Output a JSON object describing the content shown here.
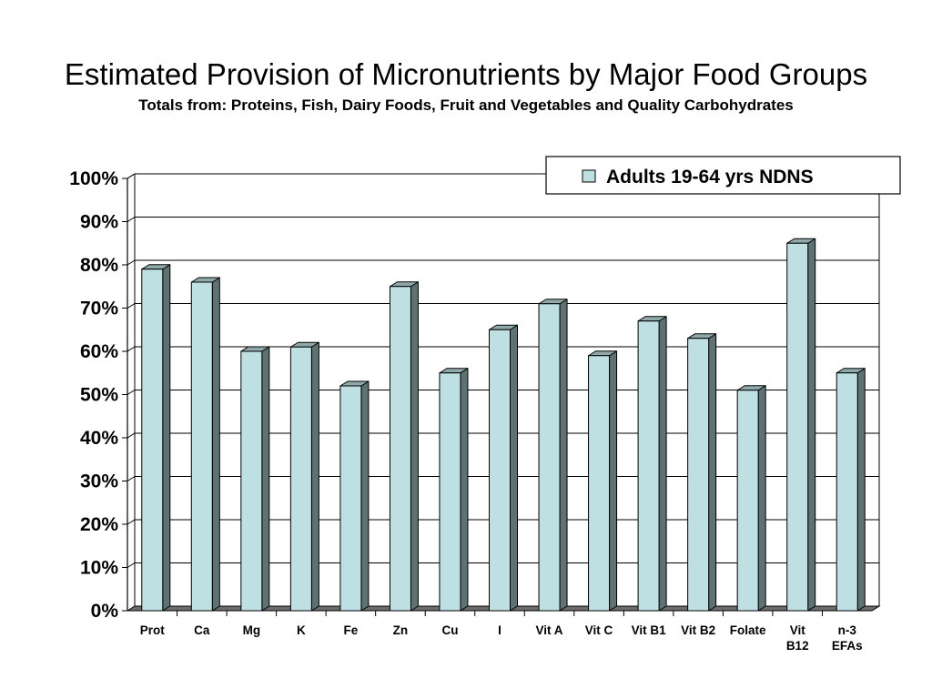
{
  "page": {
    "title": "Estimated Provision of Micronutrients by Major Food Groups",
    "subtitle": "Totals from: Proteins, Fish, Dairy Foods, Fruit and Vegetables and Quality Carbohydrates"
  },
  "chart_data": {
    "type": "bar",
    "style": "3d-column",
    "title": "",
    "xlabel": "",
    "ylabel": "",
    "ylim": [
      0,
      100
    ],
    "yticks": [
      0,
      10,
      20,
      30,
      40,
      50,
      60,
      70,
      80,
      90,
      100
    ],
    "ytick_labels": [
      "0%",
      "10%",
      "20%",
      "30%",
      "40%",
      "50%",
      "60%",
      "70%",
      "80%",
      "90%",
      "100%"
    ],
    "grid": true,
    "legend_position": "top-right",
    "categories": [
      [
        "Prot"
      ],
      [
        "Ca"
      ],
      [
        "Mg"
      ],
      [
        "K"
      ],
      [
        "Fe"
      ],
      [
        "Zn"
      ],
      [
        "Cu"
      ],
      [
        "I"
      ],
      [
        "Vit A"
      ],
      [
        "Vit C"
      ],
      [
        "Vit B1"
      ],
      [
        "Vit B2"
      ],
      [
        "Folate"
      ],
      [
        "Vit",
        "B12"
      ],
      [
        "n-3",
        "EFAs"
      ]
    ],
    "series": [
      {
        "name": "Adults 19-64 yrs NDNS",
        "color": "#bfe0e3",
        "values": [
          79,
          76,
          60,
          61,
          52,
          75,
          55,
          65,
          71,
          59,
          67,
          63,
          51,
          85,
          55
        ]
      }
    ]
  }
}
